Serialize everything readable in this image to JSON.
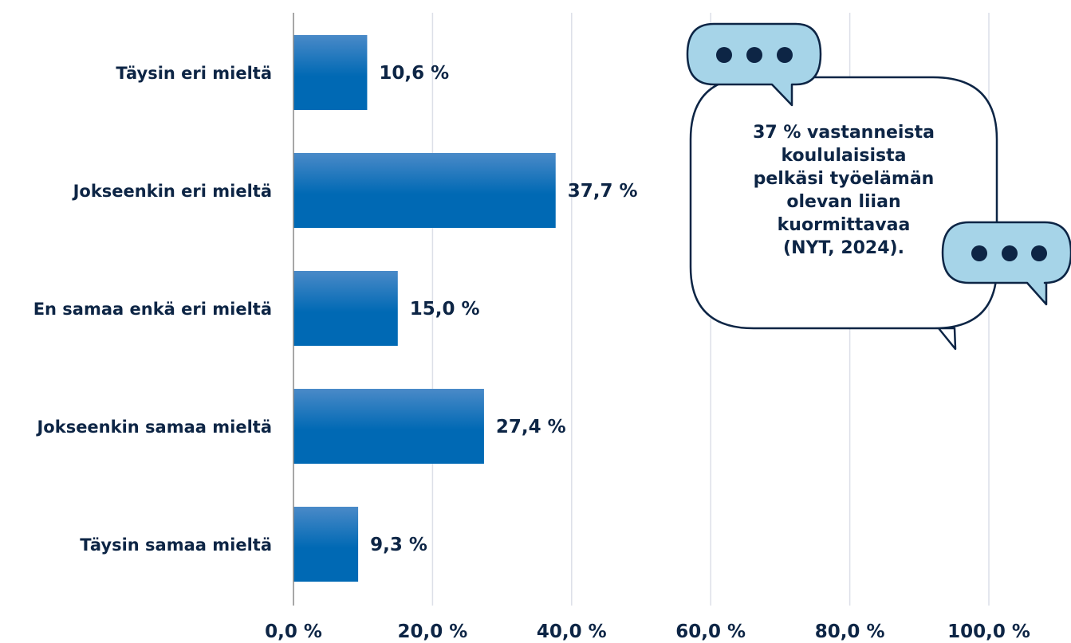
{
  "colors": {
    "bar_top": "#4a8ac8",
    "bar_bottom": "#0069b4",
    "text": "#0d2545",
    "grid": "#dcdfe8",
    "axis": "#8a8a8a",
    "bubble_fill": "#a6d4e8",
    "bubble_stroke": "#0d2545"
  },
  "chart_data": {
    "type": "bar",
    "orientation": "horizontal",
    "categories": [
      "Täysin eri mieltä",
      "Jokseenkin eri mieltä",
      "En samaa enkä eri mieltä",
      "Jokseenkin samaa mieltä",
      "Täysin samaa mieltä"
    ],
    "values": [
      10.6,
      37.7,
      15.0,
      27.4,
      9.3
    ],
    "value_labels": [
      "10,6 %",
      "37,7 %",
      "15,0 %",
      "27,4 %",
      "9,3 %"
    ],
    "xlim": [
      0,
      100
    ],
    "x_ticks": [
      0,
      20,
      40,
      60,
      80,
      100
    ],
    "x_tick_labels": [
      "0,0 %",
      "20,0 %",
      "40,0 %",
      "60,0 %",
      "80,0 %",
      "100,0 %"
    ],
    "grid": true,
    "legend": false
  },
  "callout": {
    "text": "37 % vastanneista\nkoululaisista\npelkäsi työelämän\nolevan liian\nkuormittavaa\n(NYT, 2024).",
    "icon": "speech-bubble-icon"
  }
}
